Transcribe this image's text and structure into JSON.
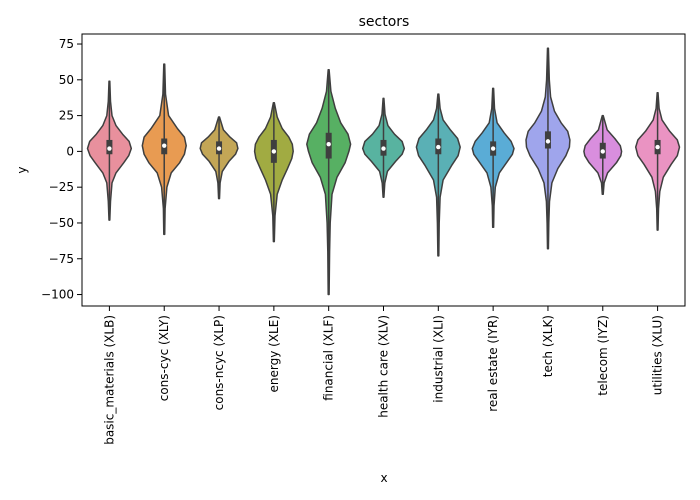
{
  "chart_data": {
    "type": "violin",
    "title": "sectors",
    "xlabel": "x",
    "ylabel": "y",
    "ylim": [
      -108,
      82
    ],
    "yticks": [
      75,
      50,
      25,
      0,
      -25,
      -50,
      -75,
      -100
    ],
    "ytick_labels": [
      "75",
      "50",
      "25",
      "0",
      "−25",
      "−50",
      "−75",
      "−100"
    ],
    "categories": [
      "basic_materials (XLB)",
      "cons-cyc (XLY)",
      "cons-ncyc (XLP)",
      "energy (XLE)",
      "financial (XLF)",
      "health care (XLV)",
      "industrial (XLI)",
      "real estate (IYR)",
      "tech (XLK)",
      "telecom (IYZ)",
      "utilities (XLU)"
    ],
    "series": [
      {
        "min": -48,
        "q1": -2,
        "median": 2,
        "q3": 8,
        "max": 49,
        "color": "#e8909d",
        "profile": [
          [
            -48,
            0.02
          ],
          [
            -35,
            0.05
          ],
          [
            -22,
            0.12
          ],
          [
            -15,
            0.3
          ],
          [
            -8,
            0.65
          ],
          [
            -3,
            0.88
          ],
          [
            2,
            1.0
          ],
          [
            7,
            0.9
          ],
          [
            12,
            0.6
          ],
          [
            18,
            0.3
          ],
          [
            25,
            0.12
          ],
          [
            35,
            0.05
          ],
          [
            49,
            0.02
          ]
        ]
      },
      {
        "min": -58,
        "q1": -2,
        "median": 4,
        "q3": 9,
        "max": 61,
        "color": "#e89b52",
        "profile": [
          [
            -58,
            0.02
          ],
          [
            -40,
            0.04
          ],
          [
            -25,
            0.12
          ],
          [
            -15,
            0.32
          ],
          [
            -8,
            0.7
          ],
          [
            -2,
            0.92
          ],
          [
            4,
            1.0
          ],
          [
            10,
            0.92
          ],
          [
            16,
            0.6
          ],
          [
            25,
            0.2
          ],
          [
            40,
            0.06
          ],
          [
            61,
            0.02
          ]
        ]
      },
      {
        "min": -33,
        "q1": -2,
        "median": 2,
        "q3": 7,
        "max": 24,
        "color": "#c3a656",
        "profile": [
          [
            -33,
            0.02
          ],
          [
            -22,
            0.05
          ],
          [
            -14,
            0.15
          ],
          [
            -7,
            0.45
          ],
          [
            -2,
            0.75
          ],
          [
            2,
            0.86
          ],
          [
            6,
            0.8
          ],
          [
            10,
            0.5
          ],
          [
            15,
            0.2
          ],
          [
            24,
            0.02
          ]
        ]
      },
      {
        "min": -63,
        "q1": -8,
        "median": 0,
        "q3": 8,
        "max": 34,
        "color": "#a1ab42",
        "profile": [
          [
            -63,
            0.02
          ],
          [
            -45,
            0.05
          ],
          [
            -30,
            0.15
          ],
          [
            -20,
            0.38
          ],
          [
            -12,
            0.62
          ],
          [
            -5,
            0.82
          ],
          [
            0,
            0.88
          ],
          [
            5,
            0.84
          ],
          [
            10,
            0.68
          ],
          [
            16,
            0.38
          ],
          [
            24,
            0.15
          ],
          [
            34,
            0.02
          ]
        ]
      },
      {
        "min": -100,
        "q1": -5,
        "median": 5,
        "q3": 13,
        "max": 57,
        "color": "#57b063",
        "profile": [
          [
            -100,
            0.02
          ],
          [
            -70,
            0.04
          ],
          [
            -50,
            0.07
          ],
          [
            -30,
            0.15
          ],
          [
            -18,
            0.38
          ],
          [
            -8,
            0.75
          ],
          [
            0,
            0.92
          ],
          [
            5,
            1.0
          ],
          [
            12,
            0.88
          ],
          [
            20,
            0.55
          ],
          [
            30,
            0.3
          ],
          [
            42,
            0.1
          ],
          [
            57,
            0.02
          ]
        ]
      },
      {
        "min": -32,
        "q1": -3,
        "median": 2,
        "q3": 8,
        "max": 37,
        "color": "#58b3a0",
        "profile": [
          [
            -32,
            0.02
          ],
          [
            -22,
            0.06
          ],
          [
            -14,
            0.18
          ],
          [
            -7,
            0.55
          ],
          [
            -2,
            0.85
          ],
          [
            2,
            0.95
          ],
          [
            7,
            0.85
          ],
          [
            12,
            0.5
          ],
          [
            18,
            0.2
          ],
          [
            26,
            0.07
          ],
          [
            37,
            0.02
          ]
        ]
      },
      {
        "min": -73,
        "q1": -2,
        "median": 3,
        "q3": 9,
        "max": 40,
        "color": "#5ab0b5",
        "profile": [
          [
            -73,
            0.02
          ],
          [
            -50,
            0.04
          ],
          [
            -32,
            0.08
          ],
          [
            -20,
            0.22
          ],
          [
            -10,
            0.6
          ],
          [
            -3,
            0.9
          ],
          [
            3,
            1.0
          ],
          [
            9,
            0.88
          ],
          [
            15,
            0.55
          ],
          [
            22,
            0.22
          ],
          [
            30,
            0.08
          ],
          [
            40,
            0.02
          ]
        ]
      },
      {
        "min": -53,
        "q1": -3,
        "median": 2,
        "q3": 7,
        "max": 44,
        "color": "#5aacd6",
        "profile": [
          [
            -53,
            0.02
          ],
          [
            -38,
            0.04
          ],
          [
            -25,
            0.1
          ],
          [
            -15,
            0.28
          ],
          [
            -7,
            0.65
          ],
          [
            -2,
            0.88
          ],
          [
            2,
            0.95
          ],
          [
            7,
            0.82
          ],
          [
            13,
            0.5
          ],
          [
            20,
            0.18
          ],
          [
            30,
            0.06
          ],
          [
            44,
            0.02
          ]
        ]
      },
      {
        "min": -68,
        "q1": 2,
        "median": 7,
        "q3": 14,
        "max": 72,
        "color": "#9fa5ec",
        "profile": [
          [
            -68,
            0.02
          ],
          [
            -50,
            0.04
          ],
          [
            -35,
            0.07
          ],
          [
            -22,
            0.18
          ],
          [
            -12,
            0.45
          ],
          [
            -3,
            0.82
          ],
          [
            3,
            0.98
          ],
          [
            8,
            1.0
          ],
          [
            14,
            0.9
          ],
          [
            20,
            0.6
          ],
          [
            28,
            0.3
          ],
          [
            38,
            0.12
          ],
          [
            50,
            0.06
          ],
          [
            72,
            0.02
          ]
        ]
      },
      {
        "min": -30,
        "q1": -5,
        "median": 0,
        "q3": 6,
        "max": 25,
        "color": "#d98ede",
        "profile": [
          [
            -30,
            0.02
          ],
          [
            -22,
            0.06
          ],
          [
            -15,
            0.22
          ],
          [
            -8,
            0.62
          ],
          [
            -3,
            0.82
          ],
          [
            0,
            0.86
          ],
          [
            4,
            0.8
          ],
          [
            9,
            0.55
          ],
          [
            15,
            0.2
          ],
          [
            25,
            0.02
          ]
        ]
      },
      {
        "min": -55,
        "q1": -2,
        "median": 3,
        "q3": 8,
        "max": 41,
        "color": "#ea93c2",
        "profile": [
          [
            -55,
            0.02
          ],
          [
            -40,
            0.04
          ],
          [
            -28,
            0.1
          ],
          [
            -18,
            0.26
          ],
          [
            -9,
            0.62
          ],
          [
            -3,
            0.9
          ],
          [
            3,
            1.0
          ],
          [
            8,
            0.9
          ],
          [
            14,
            0.55
          ],
          [
            22,
            0.2
          ],
          [
            30,
            0.07
          ],
          [
            41,
            0.02
          ]
        ]
      }
    ]
  }
}
